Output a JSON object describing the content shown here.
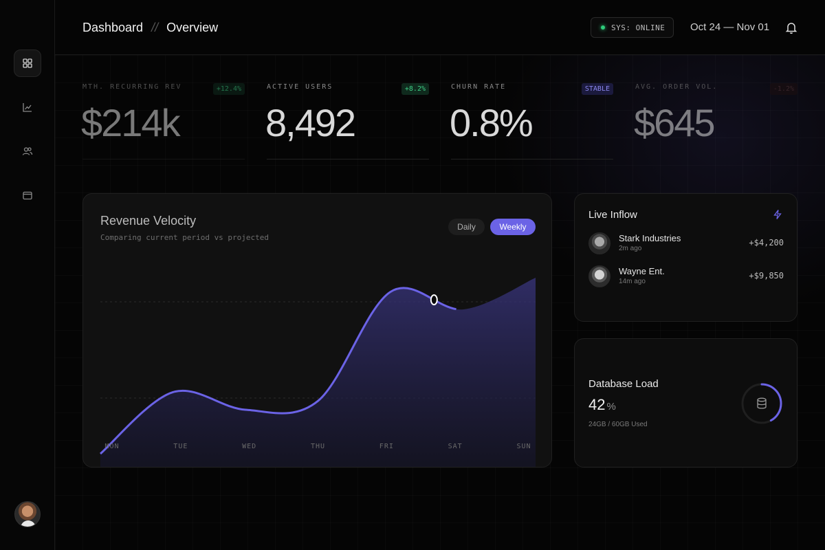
{
  "header": {
    "crumb_root": "Dashboard",
    "crumb_sep": "//",
    "crumb_page": "Overview",
    "status": "SYS: ONLINE",
    "status_color": "#2ecc7a",
    "date_range": "Oct 24 — Nov 01"
  },
  "sidebar": {
    "items": [
      {
        "icon": "grid-icon",
        "active": true
      },
      {
        "icon": "trend-chart-icon",
        "active": false
      },
      {
        "icon": "users-icon",
        "active": false
      },
      {
        "icon": "folder-icon",
        "active": false
      }
    ]
  },
  "kpis": [
    {
      "label": "MTH. RECURRING REV",
      "badge": "+12.4%",
      "value": "$214k"
    },
    {
      "label": "ACTIVE USERS",
      "badge": "+8.2%",
      "value": "8,492"
    },
    {
      "label": "CHURN RATE",
      "badge": "STABLE",
      "value": "0.8%"
    },
    {
      "label": "AVG. ORDER VOL.",
      "badge": "-1.2%",
      "value": "$645"
    }
  ],
  "revenue": {
    "title": "Revenue Velocity",
    "subtitle": "Comparing current period vs projected",
    "toggle_daily": "Daily",
    "toggle_weekly": "Weekly",
    "accent": "#6b63e6"
  },
  "chart_data": {
    "type": "area",
    "categories": [
      "MON",
      "TUE",
      "WED",
      "THU",
      "FRI",
      "SAT",
      "SUN"
    ],
    "values": [
      0.0,
      0.35,
      0.25,
      0.3,
      0.92,
      0.82,
      1.0
    ],
    "highlight_index": 4.6
  },
  "inflow": {
    "title": "Live Inflow",
    "items": [
      {
        "name": "Stark Industries",
        "time": "2m ago",
        "amount": "+$4,200"
      },
      {
        "name": "Wayne Ent.",
        "time": "14m ago",
        "amount": "+$9,850"
      }
    ]
  },
  "database": {
    "title": "Database Load",
    "value": "42",
    "unit": "%",
    "usage": "24GB / 60GB Used",
    "load_fraction": 0.42
  }
}
